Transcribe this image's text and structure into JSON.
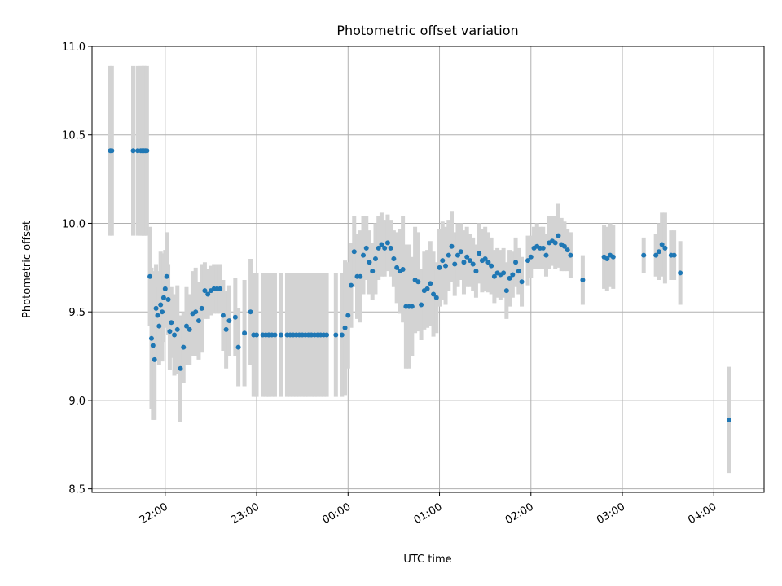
{
  "chart_data": {
    "type": "scatter",
    "title": "Photometric offset variation",
    "xlabel": "UTC time",
    "ylabel": "Photometric offset",
    "xlim_hours": [
      21.2,
      28.55
    ],
    "ylim": [
      8.48,
      11.0
    ],
    "x_ticks": [
      {
        "label": "22:00",
        "value": 22
      },
      {
        "label": "23:00",
        "value": 23
      },
      {
        "label": "00:00",
        "value": 24
      },
      {
        "label": "01:00",
        "value": 25
      },
      {
        "label": "02:00",
        "value": 26
      },
      {
        "label": "03:00",
        "value": 27
      },
      {
        "label": "04:00",
        "value": 28
      }
    ],
    "y_ticks": [
      {
        "label": "8.5",
        "value": 8.5
      },
      {
        "label": "9.0",
        "value": 9.0
      },
      {
        "label": "9.5",
        "value": 9.5
      },
      {
        "label": "10.0",
        "value": 10.0
      },
      {
        "label": "10.5",
        "value": 10.5
      },
      {
        "label": "11.0",
        "value": 11.0
      }
    ],
    "grid": true,
    "marker_color": "#1f77b4",
    "errorbar_color": "#d3d3d3",
    "series": [
      {
        "x_utc": [
          "21:24",
          "21:25",
          "21:39",
          "21:42",
          "21:44",
          "21:45",
          "21:46",
          "21:47",
          "21:48",
          "21:50",
          "21:51",
          "21:52",
          "21:53",
          "21:54",
          "21:55",
          "21:56",
          "21:57",
          "21:58",
          "21:59",
          "22:00",
          "22:01",
          "22:02",
          "22:03",
          "22:04",
          "22:06",
          "22:08",
          "22:10",
          "22:12",
          "22:14",
          "22:16",
          "22:18",
          "22:20",
          "22:22",
          "22:24",
          "22:26",
          "22:28",
          "22:30",
          "22:32",
          "22:34",
          "22:36",
          "22:38",
          "22:40",
          "22:42",
          "22:46",
          "22:48",
          "22:52",
          "22:56",
          "22:58",
          "23:00",
          "23:04",
          "23:06",
          "23:08",
          "23:08",
          "23:10",
          "23:12",
          "23:16",
          "23:20",
          "23:22",
          "23:24",
          "23:26",
          "23:28",
          "23:30",
          "23:32",
          "23:34",
          "23:36",
          "23:38",
          "23:40",
          "23:42",
          "23:44",
          "23:46",
          "23:52",
          "23:56",
          "23:58",
          "00:00",
          "00:02",
          "00:04",
          "00:06",
          "00:08",
          "00:10",
          "00:12",
          "00:14",
          "00:16",
          "00:18",
          "00:20",
          "00:22",
          "00:24",
          "00:26",
          "00:28",
          "00:30",
          "00:32",
          "00:34",
          "00:36",
          "00:38",
          "00:40",
          "00:42",
          "00:44",
          "00:46",
          "00:48",
          "00:50",
          "00:52",
          "00:54",
          "00:56",
          "00:58",
          "01:00",
          "01:02",
          "01:04",
          "01:06",
          "01:08",
          "01:10",
          "01:12",
          "01:14",
          "01:16",
          "01:18",
          "01:20",
          "01:22",
          "01:24",
          "01:26",
          "01:28",
          "01:30",
          "01:32",
          "01:34",
          "01:36",
          "01:38",
          "01:40",
          "01:42",
          "01:44",
          "01:46",
          "01:48",
          "01:50",
          "01:52",
          "01:54",
          "01:58",
          "02:00",
          "02:02",
          "02:04",
          "02:06",
          "02:08",
          "02:10",
          "02:12",
          "02:14",
          "02:16",
          "02:18",
          "02:20",
          "02:22",
          "02:24",
          "02:26",
          "02:34",
          "02:48",
          "02:50",
          "02:52",
          "02:54",
          "03:14",
          "03:22",
          "03:24",
          "03:26",
          "03:28",
          "03:32",
          "03:34",
          "03:38",
          "04:10"
        ],
        "y": [
          10.41,
          10.41,
          10.41,
          10.41,
          10.41,
          10.41,
          10.41,
          10.41,
          10.41,
          9.7,
          9.35,
          9.31,
          9.23,
          9.52,
          9.48,
          9.42,
          9.54,
          9.5,
          9.58,
          9.63,
          9.7,
          9.57,
          9.39,
          9.44,
          9.37,
          9.4,
          9.18,
          9.3,
          9.42,
          9.4,
          9.49,
          9.5,
          9.45,
          9.52,
          9.62,
          9.6,
          9.62,
          9.63,
          9.63,
          9.63,
          9.48,
          9.4,
          9.45,
          9.47,
          9.3,
          9.38,
          9.5,
          9.37,
          9.37,
          9.37,
          9.37,
          9.37,
          9.37,
          9.37,
          9.37,
          9.37,
          9.37,
          9.37,
          9.37,
          9.37,
          9.37,
          9.37,
          9.37,
          9.37,
          9.37,
          9.37,
          9.37,
          9.37,
          9.37,
          9.37,
          9.37,
          9.37,
          9.41,
          9.48,
          9.65,
          9.84,
          9.7,
          9.7,
          9.82,
          9.86,
          9.78,
          9.73,
          9.8,
          9.86,
          9.88,
          9.86,
          9.89,
          9.86,
          9.8,
          9.75,
          9.73,
          9.74,
          9.53,
          9.53,
          9.53,
          9.68,
          9.67,
          9.54,
          9.62,
          9.63,
          9.66,
          9.6,
          9.58,
          9.75,
          9.79,
          9.76,
          9.82,
          9.87,
          9.77,
          9.82,
          9.84,
          9.78,
          9.81,
          9.79,
          9.77,
          9.73,
          9.83,
          9.79,
          9.8,
          9.78,
          9.76,
          9.7,
          9.72,
          9.71,
          9.72,
          9.62,
          9.69,
          9.71,
          9.78,
          9.73,
          9.67,
          9.79,
          9.81,
          9.86,
          9.87,
          9.86,
          9.86,
          9.82,
          9.89,
          9.9,
          9.89,
          9.93,
          9.88,
          9.87,
          9.85,
          9.82,
          9.68,
          9.81,
          9.8,
          9.82,
          9.81,
          9.82,
          9.82,
          9.84,
          9.88,
          9.86,
          9.82,
          9.82,
          9.72,
          8.89
        ],
        "err_half": [
          0.48,
          0.48,
          0.48,
          0.48,
          0.48,
          0.48,
          0.48,
          0.48,
          0.48,
          0.28,
          0.4,
          0.42,
          0.34,
          0.25,
          0.25,
          0.22,
          0.3,
          0.28,
          0.25,
          0.22,
          0.25,
          0.2,
          0.22,
          0.2,
          0.23,
          0.25,
          0.3,
          0.2,
          0.22,
          0.2,
          0.24,
          0.25,
          0.22,
          0.25,
          0.16,
          0.14,
          0.14,
          0.14,
          0.14,
          0.14,
          0.2,
          0.22,
          0.2,
          0.22,
          0.22,
          0.3,
          0.3,
          0.35,
          0.35,
          0.35,
          0.35,
          0.35,
          0.35,
          0.35,
          0.35,
          0.35,
          0.35,
          0.35,
          0.35,
          0.35,
          0.35,
          0.35,
          0.35,
          0.35,
          0.35,
          0.35,
          0.35,
          0.35,
          0.35,
          0.35,
          0.35,
          0.35,
          0.38,
          0.3,
          0.24,
          0.2,
          0.24,
          0.26,
          0.22,
          0.18,
          0.18,
          0.16,
          0.2,
          0.18,
          0.18,
          0.16,
          0.16,
          0.16,
          0.16,
          0.2,
          0.24,
          0.3,
          0.35,
          0.35,
          0.28,
          0.3,
          0.28,
          0.2,
          0.22,
          0.22,
          0.24,
          0.24,
          0.2,
          0.22,
          0.22,
          0.22,
          0.2,
          0.2,
          0.18,
          0.18,
          0.16,
          0.18,
          0.17,
          0.15,
          0.15,
          0.15,
          0.17,
          0.18,
          0.18,
          0.17,
          0.16,
          0.15,
          0.14,
          0.14,
          0.14,
          0.16,
          0.16,
          0.13,
          0.14,
          0.13,
          0.14,
          0.14,
          0.12,
          0.12,
          0.13,
          0.12,
          0.12,
          0.12,
          0.15,
          0.14,
          0.15,
          0.18,
          0.15,
          0.14,
          0.12,
          0.13,
          0.14,
          0.18,
          0.18,
          0.18,
          0.18,
          0.1,
          0.12,
          0.16,
          0.18,
          0.2,
          0.14,
          0.14,
          0.18,
          0.3
        ]
      }
    ]
  }
}
